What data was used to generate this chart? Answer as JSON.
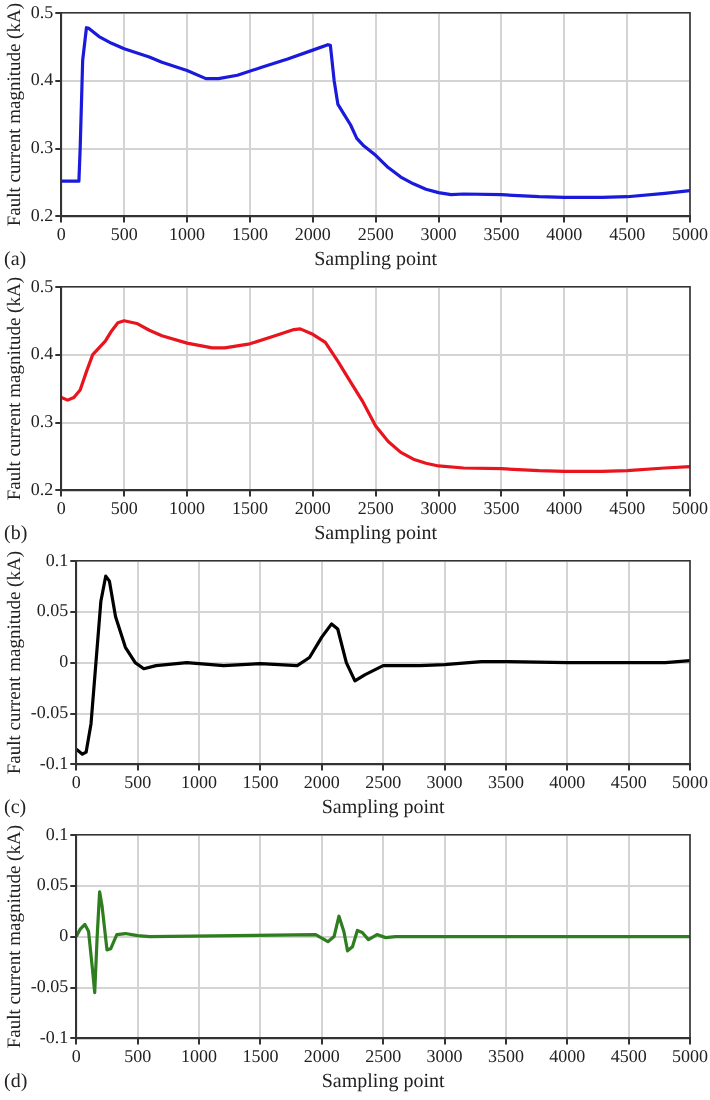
{
  "chart_data": [
    {
      "type": "line",
      "xlabel": "Sampling point",
      "ylabel": "Fault current magnitude (kA)",
      "annotations": [
        "(a)"
      ],
      "grid": true,
      "marker": "none",
      "line_style": "solid",
      "legend": false,
      "xlim": [
        0,
        5000
      ],
      "xticks": [
        0,
        500,
        1000,
        1500,
        2000,
        2500,
        3000,
        3500,
        4000,
        4500,
        5000
      ],
      "ylim": [
        0.2,
        0.5
      ],
      "yticks": [
        0.2,
        0.3,
        0.4,
        0.5
      ],
      "series": [
        {
          "color": "#1a1adc",
          "x": [
            0,
            140,
            150,
            170,
            200,
            220,
            300,
            400,
            500,
            700,
            800,
            1000,
            1150,
            1250,
            1400,
            1600,
            1800,
            2000,
            2120,
            2140,
            2170,
            2200,
            2250,
            2300,
            2350,
            2400,
            2500,
            2600,
            2700,
            2800,
            2900,
            3000,
            3100,
            3200,
            3500,
            3800,
            4000,
            4300,
            4500,
            4800,
            5000
          ],
          "values": [
            0.252,
            0.252,
            0.3,
            0.43,
            0.478,
            0.477,
            0.465,
            0.455,
            0.447,
            0.435,
            0.427,
            0.415,
            0.403,
            0.403,
            0.408,
            0.42,
            0.432,
            0.445,
            0.453,
            0.452,
            0.4,
            0.365,
            0.35,
            0.335,
            0.315,
            0.305,
            0.29,
            0.272,
            0.258,
            0.248,
            0.24,
            0.235,
            0.232,
            0.233,
            0.232,
            0.229,
            0.228,
            0.228,
            0.229,
            0.234,
            0.238
          ]
        }
      ]
    },
    {
      "type": "line",
      "xlabel": "Sampling point",
      "ylabel": "Fault current magnitude (kA)",
      "annotations": [
        "(b)"
      ],
      "grid": true,
      "marker": "none",
      "line_style": "solid",
      "legend": false,
      "xlim": [
        0,
        5000
      ],
      "xticks": [
        0,
        500,
        1000,
        1500,
        2000,
        2500,
        3000,
        3500,
        4000,
        4500,
        5000
      ],
      "ylim": [
        0.2,
        0.5
      ],
      "yticks": [
        0.2,
        0.3,
        0.4,
        0.5
      ],
      "series": [
        {
          "color": "#e8141e",
          "x": [
            0,
            50,
            100,
            150,
            200,
            250,
            300,
            350,
            400,
            450,
            500,
            600,
            700,
            800,
            1000,
            1200,
            1300,
            1500,
            1700,
            1850,
            1900,
            2000,
            2100,
            2200,
            2300,
            2400,
            2500,
            2600,
            2700,
            2800,
            2900,
            3000,
            3200,
            3500,
            3800,
            4000,
            4300,
            4500,
            4800,
            5000
          ],
          "values": [
            0.337,
            0.333,
            0.337,
            0.348,
            0.375,
            0.4,
            0.41,
            0.42,
            0.435,
            0.447,
            0.45,
            0.446,
            0.436,
            0.428,
            0.417,
            0.41,
            0.41,
            0.416,
            0.428,
            0.437,
            0.438,
            0.43,
            0.418,
            0.39,
            0.36,
            0.33,
            0.295,
            0.272,
            0.256,
            0.246,
            0.24,
            0.236,
            0.233,
            0.232,
            0.229,
            0.228,
            0.228,
            0.229,
            0.233,
            0.235
          ]
        }
      ]
    },
    {
      "type": "line",
      "xlabel": "Sampling point",
      "ylabel": "Fault current magnitude (kA)",
      "annotations": [
        "(c)"
      ],
      "grid": true,
      "marker": "none",
      "line_style": "solid",
      "legend": false,
      "xlim": [
        0,
        5000
      ],
      "xticks": [
        0,
        500,
        1000,
        1500,
        2000,
        2500,
        3000,
        3500,
        4000,
        4500,
        5000
      ],
      "ylim": [
        -0.1,
        0.1
      ],
      "yticks": [
        -0.1,
        -0.05,
        0,
        0.05,
        0.1
      ],
      "series": [
        {
          "color": "#000000",
          "x": [
            0,
            50,
            80,
            120,
            160,
            200,
            240,
            270,
            320,
            400,
            480,
            550,
            650,
            900,
            1200,
            1500,
            1800,
            1900,
            2000,
            2080,
            2130,
            2200,
            2270,
            2350,
            2500,
            2800,
            3000,
            3300,
            3500,
            4000,
            4800,
            5000
          ],
          "values": [
            -0.085,
            -0.09,
            -0.088,
            -0.06,
            0,
            0.06,
            0.085,
            0.08,
            0.045,
            0.015,
            0,
            -0.006,
            -0.003,
            0,
            -0.003,
            -0.001,
            -0.003,
            0.005,
            0.025,
            0.038,
            0.033,
            0,
            -0.018,
            -0.012,
            -0.003,
            -0.003,
            -0.002,
            0.001,
            0.001,
            0,
            0,
            0.002
          ]
        }
      ]
    },
    {
      "type": "line",
      "xlabel": "Sampling point",
      "ylabel": "Fault current magnitude (kA)",
      "annotations": [
        "(d)"
      ],
      "grid": true,
      "marker": "none",
      "line_style": "solid",
      "legend": false,
      "xlim": [
        0,
        5000
      ],
      "xticks": [
        0,
        500,
        1000,
        1500,
        2000,
        2500,
        3000,
        3500,
        4000,
        4500,
        5000
      ],
      "ylim": [
        -0.1,
        0.1
      ],
      "yticks": [
        -0.1,
        -0.05,
        0,
        0.05,
        0.1
      ],
      "series": [
        {
          "color": "#2e7d1e",
          "x": [
            0,
            30,
            70,
            100,
            130,
            150,
            170,
            190,
            210,
            250,
            280,
            330,
            400,
            500,
            600,
            1950,
            2050,
            2100,
            2140,
            2180,
            2210,
            2250,
            2290,
            2330,
            2380,
            2450,
            2520,
            2600,
            5000
          ],
          "values": [
            0,
            0.007,
            0.012,
            0.005,
            -0.03,
            -0.055,
            0,
            0.044,
            0.03,
            -0.013,
            -0.012,
            0.002,
            0.003,
            0.001,
            0,
            0.002,
            -0.005,
            0,
            0.02,
            0.005,
            -0.014,
            -0.01,
            0.006,
            0.004,
            -0.003,
            0.002,
            -0.001,
            0,
            0
          ]
        }
      ]
    }
  ]
}
